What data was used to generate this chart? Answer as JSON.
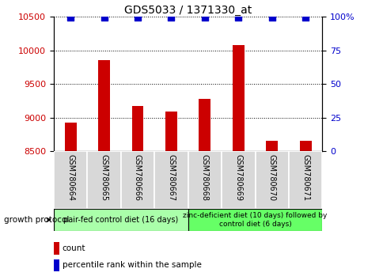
{
  "title": "GDS5033 / 1371330_at",
  "samples": [
    "GSM780664",
    "GSM780665",
    "GSM780666",
    "GSM780667",
    "GSM780668",
    "GSM780669",
    "GSM780670",
    "GSM780671"
  ],
  "counts": [
    8930,
    9860,
    9170,
    9090,
    9280,
    10080,
    8660,
    8660
  ],
  "percentile_rank": 99.5,
  "ylim_left": [
    8500,
    10500
  ],
  "ylim_right": [
    0,
    100
  ],
  "yticks_left": [
    8500,
    9000,
    9500,
    10000,
    10500
  ],
  "yticks_right": [
    0,
    25,
    50,
    75,
    100
  ],
  "bar_color": "#cc0000",
  "marker_color": "#0000cc",
  "marker_size": 28,
  "bar_width": 0.35,
  "grid_color": "#000000",
  "background_color": "#ffffff",
  "group1_label": "pair-fed control diet (16 days)",
  "group2_label": "zinc-deficient diet (10 days) followed by\ncontrol diet (6 days)",
  "group1_color": "#aaffaa",
  "group2_color": "#66ff66",
  "group1_samples": [
    0,
    1,
    2,
    3
  ],
  "group2_samples": [
    4,
    5,
    6,
    7
  ],
  "protocol_label": "growth protocol",
  "legend_count_label": "count",
  "legend_pct_label": "percentile rank within the sample",
  "tick_color_left": "#cc0000",
  "tick_color_right": "#0000cc",
  "sample_box_color": "#d8d8d8",
  "title_fontsize": 10,
  "tick_fontsize": 8,
  "sample_fontsize": 7,
  "group_fontsize": 7,
  "legend_fontsize": 7.5,
  "protocol_fontsize": 7.5
}
